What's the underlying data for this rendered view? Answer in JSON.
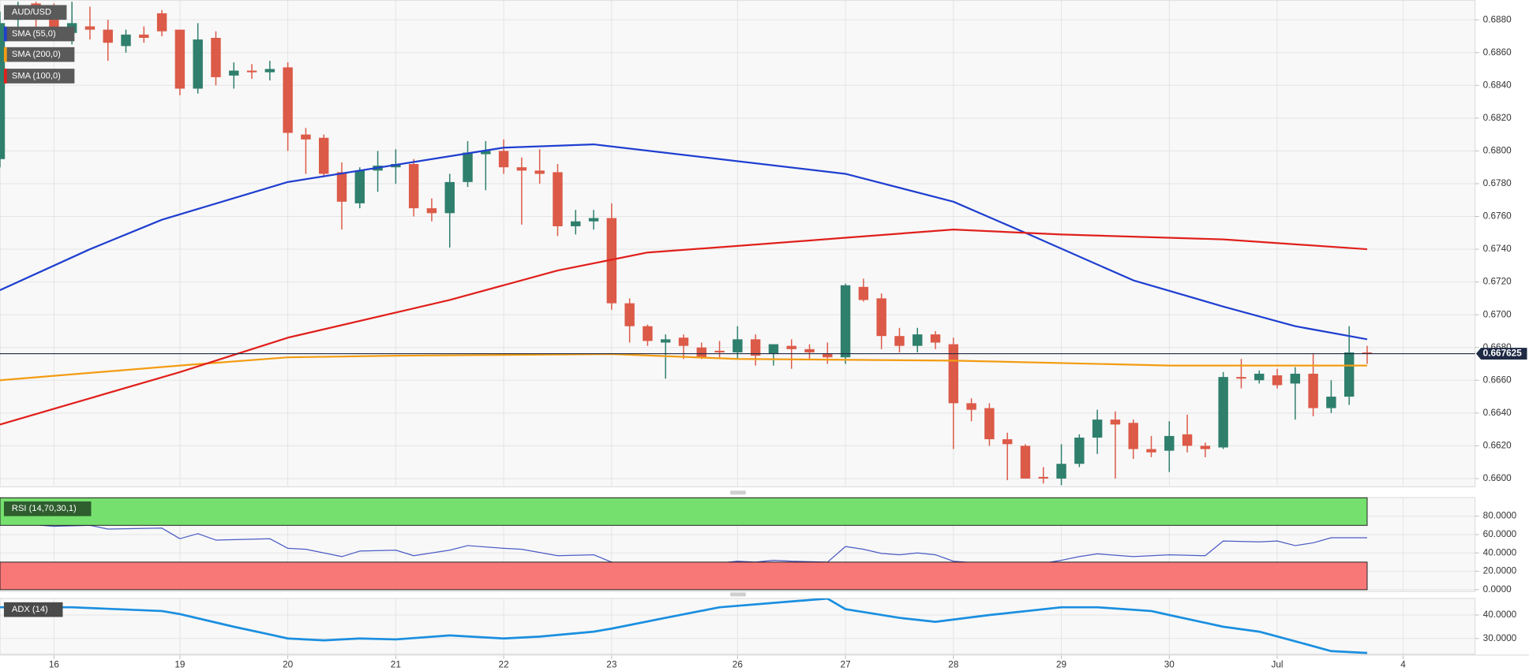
{
  "chart_data": [
    {
      "type": "candlestick",
      "name": "AUD/USD",
      "x": [
        0,
        1,
        2,
        3,
        4,
        5,
        6,
        7,
        8,
        9,
        10,
        11,
        12,
        13,
        14,
        15,
        16,
        17,
        18,
        19,
        20,
        21,
        22,
        23,
        24,
        25,
        26,
        27,
        28,
        29,
        30,
        31,
        32,
        33,
        34,
        35,
        36,
        37,
        38,
        39,
        40,
        41,
        42,
        43,
        44,
        45,
        46,
        47,
        48,
        49,
        50,
        51,
        52,
        53,
        54,
        55,
        56,
        57,
        58,
        59,
        60,
        61,
        62,
        63,
        64,
        65,
        66,
        67,
        68,
        69,
        70,
        71,
        72,
        73,
        74,
        75,
        76
      ],
      "open": [
        0.6795,
        0.688,
        0.689,
        0.6885,
        0.6872,
        0.6876,
        0.6874,
        0.6864,
        0.6871,
        0.6884,
        0.6874,
        0.6838,
        0.6869,
        0.6846,
        0.6849,
        0.6848,
        0.6851,
        0.681,
        0.6808,
        0.6787,
        0.6768,
        0.6788,
        0.679,
        0.6792,
        0.6765,
        0.6762,
        0.6781,
        0.6798,
        0.68,
        0.679,
        0.6788,
        0.6787,
        0.6754,
        0.6757,
        0.6759,
        0.6707,
        0.6693,
        0.6683,
        0.6686,
        0.668,
        0.6678,
        0.6677,
        0.6685,
        0.6676,
        0.6681,
        0.6679,
        0.6676,
        0.6674,
        0.6717,
        0.671,
        0.6687,
        0.6681,
        0.6688,
        0.6682,
        0.6646,
        0.6643,
        0.6624,
        0.662,
        0.6601,
        0.66,
        0.6609,
        0.6625,
        0.6636,
        0.6634,
        0.6618,
        0.6617,
        0.6627,
        0.662,
        0.6619,
        0.6662,
        0.666,
        0.6663,
        0.6658,
        0.6664,
        0.6643,
        0.665,
        0.6677
      ],
      "high": [
        0.6885,
        0.6891,
        0.6891,
        0.689,
        0.6891,
        0.6888,
        0.688,
        0.6874,
        0.6876,
        0.6886,
        0.6874,
        0.6878,
        0.6873,
        0.6854,
        0.6853,
        0.6855,
        0.6854,
        0.6814,
        0.681,
        0.6793,
        0.679,
        0.68,
        0.6801,
        0.6795,
        0.6771,
        0.6786,
        0.6806,
        0.6806,
        0.6807,
        0.6796,
        0.6801,
        0.6792,
        0.6764,
        0.6764,
        0.6768,
        0.671,
        0.6694,
        0.6688,
        0.6688,
        0.6683,
        0.6684,
        0.6693,
        0.6688,
        0.6682,
        0.6685,
        0.6682,
        0.6683,
        0.6719,
        0.6722,
        0.6713,
        0.6692,
        0.6692,
        0.669,
        0.6686,
        0.6649,
        0.6646,
        0.6628,
        0.6621,
        0.6607,
        0.6621,
        0.6627,
        0.6642,
        0.6641,
        0.6636,
        0.6626,
        0.6635,
        0.6639,
        0.6622,
        0.6665,
        0.6673,
        0.6666,
        0.6667,
        0.6668,
        0.6676,
        0.666,
        0.6693,
        0.6681
      ],
      "low": [
        0.679,
        0.687,
        0.6875,
        0.687,
        0.6865,
        0.6868,
        0.6855,
        0.686,
        0.6866,
        0.687,
        0.6834,
        0.6835,
        0.684,
        0.6838,
        0.6844,
        0.6843,
        0.68,
        0.6786,
        0.6784,
        0.6752,
        0.6765,
        0.6775,
        0.678,
        0.676,
        0.6757,
        0.6741,
        0.6778,
        0.6776,
        0.6786,
        0.6755,
        0.678,
        0.6748,
        0.6749,
        0.6752,
        0.6703,
        0.6683,
        0.6681,
        0.6661,
        0.6673,
        0.6673,
        0.6674,
        0.6673,
        0.6669,
        0.6669,
        0.6667,
        0.6673,
        0.667,
        0.667,
        0.6708,
        0.6679,
        0.6677,
        0.6677,
        0.6679,
        0.6618,
        0.6635,
        0.662,
        0.6599,
        0.66,
        0.6597,
        0.6596,
        0.6607,
        0.6615,
        0.66,
        0.6612,
        0.6613,
        0.6604,
        0.6616,
        0.6613,
        0.6618,
        0.6655,
        0.6658,
        0.6655,
        0.6636,
        0.6638,
        0.664,
        0.6645,
        0.667
      ],
      "close": [
        0.6878,
        0.6885,
        0.6882,
        0.6874,
        0.6878,
        0.6874,
        0.6866,
        0.6871,
        0.6869,
        0.6873,
        0.6838,
        0.6868,
        0.6845,
        0.6849,
        0.6848,
        0.685,
        0.6811,
        0.6807,
        0.6786,
        0.6769,
        0.6788,
        0.6791,
        0.6792,
        0.6765,
        0.6762,
        0.6781,
        0.6799,
        0.68,
        0.679,
        0.6788,
        0.6786,
        0.6754,
        0.6757,
        0.6759,
        0.6707,
        0.6693,
        0.6684,
        0.6685,
        0.6681,
        0.6674,
        0.6677,
        0.6685,
        0.6675,
        0.6682,
        0.6679,
        0.6677,
        0.6674,
        0.6718,
        0.6709,
        0.6687,
        0.6681,
        0.6688,
        0.6683,
        0.6646,
        0.6642,
        0.6624,
        0.6621,
        0.66,
        0.66,
        0.6609,
        0.6625,
        0.6636,
        0.6633,
        0.6618,
        0.6616,
        0.6626,
        0.662,
        0.6618,
        0.6662,
        0.6661,
        0.6664,
        0.6657,
        0.6664,
        0.6643,
        0.665,
        0.6677,
        0.6676
      ],
      "up_color": "#2f7f6d",
      "down_color": "#dc5a48",
      "series": [
        {
          "name": "SMA (55,0)",
          "color": "#1f3fd0",
          "x": [
            0,
            5,
            9,
            16,
            28,
            33,
            47,
            53,
            57,
            63,
            68,
            72,
            76
          ],
          "values": [
            0.6715,
            0.674,
            0.6758,
            0.6781,
            0.6802,
            0.6804,
            0.6786,
            0.6769,
            0.675,
            0.6721,
            0.6705,
            0.6693,
            0.6685
          ]
        },
        {
          "name": "SMA (200,0)",
          "color": "#f39c12",
          "x": [
            0,
            10,
            16,
            22,
            34,
            41,
            53,
            65,
            76
          ],
          "values": [
            0.666,
            0.6669,
            0.6674,
            0.6675,
            0.6676,
            0.6673,
            0.6672,
            0.6669,
            0.6669
          ]
        },
        {
          "name": "SMA (100,0)",
          "color": "#e0201b",
          "x": [
            0,
            5,
            10,
            16,
            25,
            31,
            36,
            41,
            47,
            53,
            59,
            68,
            76
          ],
          "values": [
            0.6633,
            0.6649,
            0.6665,
            0.6686,
            0.6709,
            0.6727,
            0.6738,
            0.6742,
            0.6747,
            0.6752,
            0.6749,
            0.6746,
            0.674
          ]
        }
      ],
      "last_price": 0.667625,
      "xlim": [
        0,
        82
      ],
      "xticks": [
        {
          "value": 3,
          "label": "16"
        },
        {
          "value": 10,
          "label": "19"
        },
        {
          "value": 16,
          "label": "20"
        },
        {
          "value": 22,
          "label": "21"
        },
        {
          "value": 28,
          "label": "22"
        },
        {
          "value": 34,
          "label": "23"
        },
        {
          "value": 41,
          "label": "26"
        },
        {
          "value": 47,
          "label": "27"
        },
        {
          "value": 53,
          "label": "28"
        },
        {
          "value": 59,
          "label": "29"
        },
        {
          "value": 65,
          "label": "30"
        },
        {
          "value": 71,
          "label": "Jul"
        },
        {
          "value": 78,
          "label": "4"
        }
      ],
      "ylim": [
        0.6595,
        0.6892
      ],
      "yticks": [
        {
          "value": 0.66,
          "label": "0.6600"
        },
        {
          "value": 0.662,
          "label": "0.6620"
        },
        {
          "value": 0.664,
          "label": "0.6640"
        },
        {
          "value": 0.666,
          "label": "0.6660"
        },
        {
          "value": 0.668,
          "label": "0.6680"
        },
        {
          "value": 0.67,
          "label": "0.6700"
        },
        {
          "value": 0.672,
          "label": "0.6720"
        },
        {
          "value": 0.674,
          "label": "0.6740"
        },
        {
          "value": 0.676,
          "label": "0.6760"
        },
        {
          "value": 0.678,
          "label": "0.6780"
        },
        {
          "value": 0.68,
          "label": "0.6800"
        },
        {
          "value": 0.682,
          "label": "0.6820"
        },
        {
          "value": 0.684,
          "label": "0.6840"
        },
        {
          "value": 0.686,
          "label": "0.6860"
        },
        {
          "value": 0.688,
          "label": "0.6880"
        }
      ],
      "grid": true
    },
    {
      "type": "line",
      "series": [
        {
          "name": "RSI (14,70,30,1)",
          "color": "#4a5bc4",
          "x": [
            0,
            3,
            5,
            6,
            9,
            10,
            11,
            12,
            15,
            16,
            17,
            19,
            20,
            22,
            23,
            25,
            26,
            28,
            29,
            31,
            33,
            34,
            35,
            37,
            39,
            41,
            42,
            43,
            44,
            46,
            47,
            48,
            49,
            50,
            51,
            52,
            53,
            55,
            57,
            59,
            60,
            61,
            63,
            65,
            67,
            68,
            70,
            71,
            72,
            73,
            74,
            76
          ],
          "values": [
            73.6,
            69,
            70,
            66,
            67,
            55.5,
            61,
            54,
            55.5,
            45,
            44,
            36,
            42,
            43,
            37,
            43,
            48,
            45,
            44,
            37,
            38,
            30,
            28,
            28,
            27,
            31,
            30,
            32,
            31,
            30,
            47,
            44,
            39.5,
            38,
            40,
            38,
            31,
            28,
            25.6,
            32,
            36,
            39,
            36,
            38,
            37,
            53,
            52,
            53,
            48,
            51,
            56.5,
            56.5
          ]
        }
      ],
      "bands": [
        {
          "from": 70,
          "to": 100,
          "color": "#76e06e"
        },
        {
          "from": 0,
          "to": 30,
          "color": "#f87878"
        }
      ],
      "band_end": 76,
      "xlim": [
        0,
        82
      ],
      "ylim": [
        -2,
        100.3
      ],
      "yticks": [
        {
          "value": 0,
          "label": "0.0000"
        },
        {
          "value": 20,
          "label": "20.0000"
        },
        {
          "value": 40,
          "label": "40.0000"
        },
        {
          "value": 60,
          "label": "60.0000"
        },
        {
          "value": 80,
          "label": "80.0000"
        }
      ],
      "grid": true
    },
    {
      "type": "line",
      "series": [
        {
          "name": "ADX (14)",
          "color": "#1a8fe0",
          "x": [
            0,
            4,
            9,
            10,
            13,
            15,
            16,
            18,
            20,
            22,
            25,
            28,
            30,
            33,
            34,
            37,
            40,
            44,
            46,
            47,
            50,
            52,
            55,
            59,
            61,
            64,
            65,
            68,
            70,
            72,
            74,
            76
          ],
          "values": [
            43.3,
            43.3,
            41.7,
            40.4,
            35,
            31.7,
            30,
            29.2,
            30,
            29.6,
            31.3,
            30,
            30.8,
            32.9,
            34.2,
            38.8,
            43.3,
            45.8,
            47,
            42.5,
            38.8,
            37.1,
            40,
            43.3,
            43.3,
            41.7,
            40,
            35,
            32.9,
            28.8,
            24.6,
            23.8
          ]
        }
      ],
      "xlim": [
        0,
        82
      ],
      "ylim": [
        23.3,
        47.1
      ],
      "yticks": [
        {
          "value": 30,
          "label": "30.0000"
        },
        {
          "value": 40,
          "label": "40.0000"
        }
      ],
      "grid": true
    }
  ]
}
